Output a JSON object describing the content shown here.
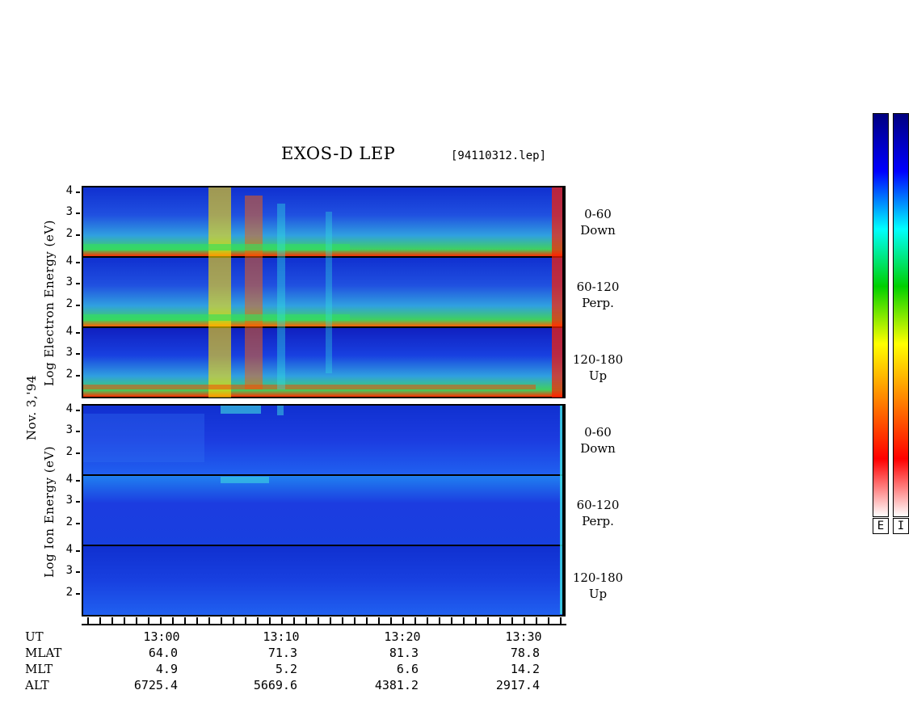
{
  "header": {
    "title": "EXOS-D LEP",
    "filename": "[94110312.lep]"
  },
  "chart_data": [
    {
      "type": "heatmap",
      "group": "Log Electron Energy (eV)",
      "ylabel": "Log Electron Energy (eV)",
      "ylim": [
        1,
        4.2
      ],
      "yticks": [
        "4",
        "3",
        "2"
      ],
      "panels": [
        {
          "label_line1": "0-60",
          "label_line2": "Down"
        },
        {
          "label_line1": "60-120",
          "label_line2": "Perp."
        },
        {
          "label_line1": "120-180",
          "label_line2": "Up"
        }
      ],
      "colorbar": "E"
    },
    {
      "type": "heatmap",
      "group": "Log Ion Energy (eV)",
      "ylabel": "Log Ion Energy (eV)",
      "ylim": [
        1,
        4.2
      ],
      "yticks": [
        "4",
        "3",
        "2"
      ],
      "panels": [
        {
          "label_line1": "0-60",
          "label_line2": "Down"
        },
        {
          "label_line1": "60-120",
          "label_line2": "Perp."
        },
        {
          "label_line1": "120-180",
          "label_line2": "Up"
        }
      ],
      "colorbar": "I"
    }
  ],
  "labels": {
    "electron_axis": "Log Electron Energy (eV)",
    "ion_axis": "Log Ion Energy (eV)",
    "date": "Nov. 3,'94"
  },
  "time_axis": {
    "rows": [
      {
        "name": "UT",
        "values": [
          "13:00",
          "13:10",
          "13:20",
          "13:30"
        ]
      },
      {
        "name": "MLAT",
        "values": [
          "64.0",
          "71.3",
          "81.3",
          "78.8"
        ]
      },
      {
        "name": "MLT",
        "values": [
          "4.9",
          "5.2",
          "6.6",
          "14.2"
        ]
      },
      {
        "name": "ALT",
        "values": [
          "6725.4",
          "5669.6",
          "4381.2",
          "2917.4"
        ]
      }
    ]
  },
  "colorbars": {
    "e_label": "E",
    "i_label": "I",
    "stops": [
      "#000080",
      "#0000ff",
      "#00ffff",
      "#00d000",
      "#ffff00",
      "#ff8000",
      "#ff0000",
      "#ffffff"
    ]
  }
}
